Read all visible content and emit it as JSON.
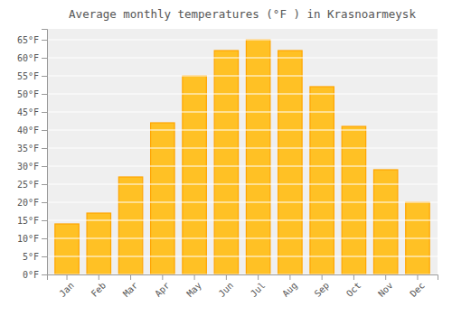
{
  "chart_data": {
    "type": "bar",
    "title": "Average monthly temperatures (°F ) in Krasnoarmeysk",
    "categories": [
      "Jan",
      "Feb",
      "Mar",
      "Apr",
      "May",
      "Jun",
      "Jul",
      "Aug",
      "Sep",
      "Oct",
      "Nov",
      "Dec"
    ],
    "values": [
      14,
      17,
      27,
      42,
      55,
      62,
      65,
      62,
      52,
      41,
      29,
      20
    ],
    "color": "#FFC125",
    "ylim": [
      0,
      68
    ],
    "yticks": [
      {
        "value": 0,
        "label": "0°F"
      },
      {
        "value": 5,
        "label": "5°F"
      },
      {
        "value": 10,
        "label": "10°F"
      },
      {
        "value": 15,
        "label": "15°F"
      },
      {
        "value": 20,
        "label": "20°F"
      },
      {
        "value": 25,
        "label": "25°F"
      },
      {
        "value": 30,
        "label": "30°F"
      },
      {
        "value": 35,
        "label": "35°F"
      },
      {
        "value": 40,
        "label": "40°F"
      },
      {
        "value": 45,
        "label": "45°F"
      },
      {
        "value": 50,
        "label": "50°F"
      },
      {
        "value": 55,
        "label": "55°F"
      },
      {
        "value": 60,
        "label": "60°F"
      },
      {
        "value": 65,
        "label": "65°F"
      }
    ],
    "grid": true
  }
}
